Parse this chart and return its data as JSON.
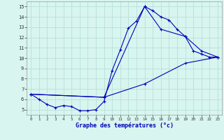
{
  "xlabel": "Graphe des températures (°c)",
  "xlim": [
    -0.5,
    23.5
  ],
  "ylim": [
    4.5,
    15.5
  ],
  "xticks": [
    0,
    1,
    2,
    3,
    4,
    5,
    6,
    7,
    8,
    9,
    10,
    11,
    12,
    13,
    14,
    15,
    16,
    17,
    18,
    19,
    20,
    21,
    22,
    23
  ],
  "yticks": [
    5,
    6,
    7,
    8,
    9,
    10,
    11,
    12,
    13,
    14,
    15
  ],
  "background_color": "#d8f5ef",
  "grid_color": "#b0ddd4",
  "line_color": "#0000bb",
  "series": [
    {
      "x": [
        0,
        1,
        2,
        3,
        4,
        5,
        6,
        7,
        8,
        9,
        10,
        11,
        12,
        13,
        14,
        15,
        16,
        17,
        18,
        19,
        20,
        21,
        22,
        23
      ],
      "y": [
        6.5,
        6.0,
        5.5,
        5.2,
        5.4,
        5.3,
        4.9,
        4.9,
        5.0,
        5.8,
        8.8,
        10.8,
        12.9,
        13.6,
        15.0,
        14.6,
        14.0,
        13.7,
        12.8,
        12.1,
        10.7,
        10.4,
        10.1,
        10.1
      ]
    },
    {
      "x": [
        0,
        9,
        14,
        19,
        23
      ],
      "y": [
        6.5,
        6.2,
        7.5,
        9.5,
        10.1
      ]
    },
    {
      "x": [
        0,
        9,
        14,
        16,
        19,
        21,
        23
      ],
      "y": [
        6.5,
        6.2,
        15.0,
        12.8,
        12.1,
        10.7,
        10.1
      ]
    }
  ]
}
